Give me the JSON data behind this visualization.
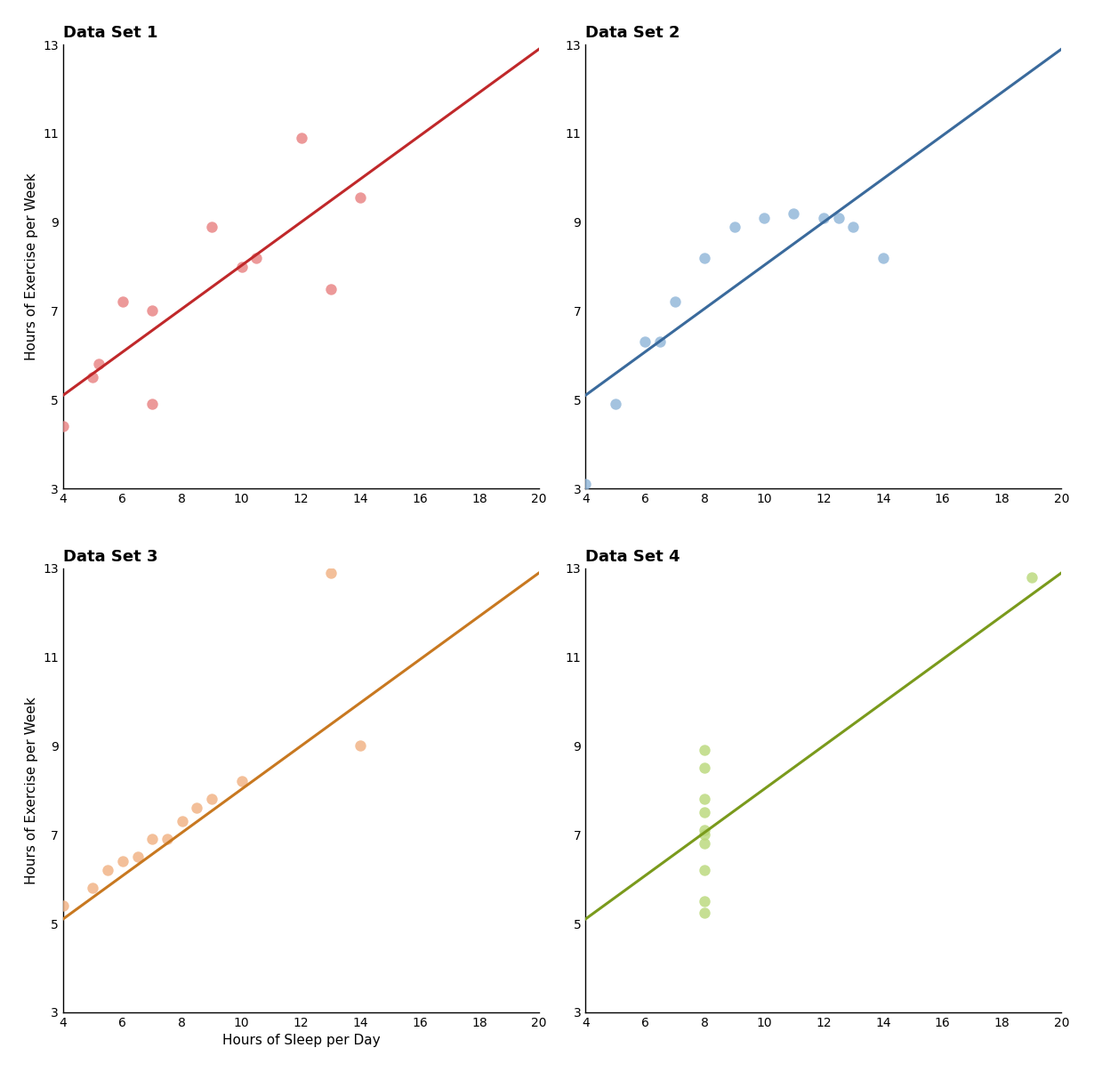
{
  "title1": "Data Set 1",
  "title2": "Data Set 2",
  "title3": "Data Set 3",
  "title4": "Data Set 4",
  "xlabel": "Hours of Sleep per Day",
  "ylabel": "Hours of Exercise per Week",
  "xlim": [
    4,
    20
  ],
  "ylim": [
    3,
    13
  ],
  "xticks": [
    4,
    6,
    8,
    10,
    12,
    14,
    16,
    18,
    20
  ],
  "yticks": [
    3,
    5,
    7,
    9,
    11,
    13
  ],
  "line_slope": 0.4875,
  "line_intercept": 3.15,
  "ds1_x": [
    4,
    5,
    5.2,
    6,
    7,
    7,
    9,
    10,
    10.5,
    12,
    13,
    14
  ],
  "ds1_y": [
    4.4,
    5.5,
    5.8,
    7.2,
    7.0,
    4.9,
    8.9,
    8.0,
    8.2,
    10.9,
    7.5,
    9.55
  ],
  "ds2_x": [
    4,
    5,
    6,
    6.5,
    7,
    8,
    9,
    10,
    11,
    12,
    12.5,
    13,
    14
  ],
  "ds2_y": [
    3.1,
    4.9,
    6.3,
    6.3,
    7.2,
    8.2,
    8.9,
    9.1,
    9.2,
    9.1,
    9.1,
    8.9,
    8.2
  ],
  "ds3_x": [
    4,
    5,
    5.5,
    6,
    6.5,
    7,
    7.5,
    8,
    8.5,
    9,
    10,
    13,
    14
  ],
  "ds3_y": [
    5.4,
    5.8,
    6.2,
    6.4,
    6.5,
    6.9,
    6.9,
    7.3,
    7.6,
    7.8,
    8.2,
    12.9,
    9.0
  ],
  "ds4_x": [
    8,
    8,
    8,
    8,
    8,
    8,
    8,
    8,
    8,
    8,
    19
  ],
  "ds4_y": [
    5.25,
    5.5,
    6.2,
    6.8,
    7.0,
    7.1,
    7.5,
    7.8,
    8.5,
    8.9,
    12.8
  ],
  "color1_line": "#c0282a",
  "color1_scatter": "#e88080",
  "color2_line": "#3a6a9c",
  "color2_scatter": "#8eb4d8",
  "color3_line": "#c87820",
  "color3_scatter": "#f0b080",
  "color4_line": "#7a9a1c",
  "color4_scatter": "#b8d878",
  "line_width": 2.2,
  "scatter_size": 80,
  "scatter_alpha": 0.8
}
